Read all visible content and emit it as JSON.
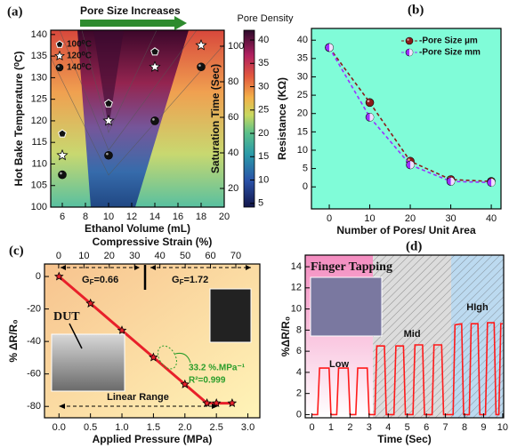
{
  "chart_data": [
    {
      "type": "contour",
      "panel_label": "(a)",
      "annotation": "Pore Size Increases",
      "xlabel": "Ethanol Volume (mL)",
      "ylabel": "Hot Bake Temperature (⁰C)",
      "y2label": "Saturation Time (Sec)",
      "colorbar_label": "Pore Density",
      "xlim": [
        5,
        20
      ],
      "xticks": [
        6,
        8,
        10,
        12,
        14,
        16,
        18,
        20
      ],
      "ylim": [
        100,
        141
      ],
      "yticks": [
        100,
        105,
        110,
        115,
        120,
        125,
        130,
        135,
        140
      ],
      "y2lim": [
        9.5,
        109
      ],
      "y2ticks": [
        20,
        40,
        60,
        80,
        100
      ],
      "clim": [
        4.2,
        42.1
      ],
      "cticks": [
        5,
        10,
        15,
        20,
        25,
        30,
        35,
        40
      ],
      "series": [
        {
          "name": "100⁰C",
          "marker": "pentagon",
          "color": "#111111",
          "x": [
            6,
            10,
            14
          ],
          "values": [
            117,
            124,
            136
          ]
        },
        {
          "name": "120⁰C",
          "marker": "star",
          "color": "#ffffff",
          "x": [
            6,
            10,
            14,
            18
          ],
          "values": [
            112,
            120,
            132.5,
            137.5
          ]
        },
        {
          "name": "140⁰C",
          "marker": "ball",
          "color": "#111111",
          "x": [
            6,
            10,
            14,
            18
          ],
          "values": [
            107.5,
            112,
            120,
            132.5
          ]
        }
      ]
    },
    {
      "type": "line",
      "panel_label": "(b)",
      "xlabel": "Number of Pores/ Unit Area",
      "ylabel": "Resistance (KΩ)",
      "x": [
        0,
        10,
        20,
        30,
        40
      ],
      "xlim": [
        -4.4,
        42.4
      ],
      "xticks": [
        0,
        10,
        20,
        30,
        40
      ],
      "ylim": [
        -6,
        43.2
      ],
      "yticks": [
        0,
        5,
        10,
        15,
        20,
        25,
        30,
        35,
        40
      ],
      "background": "#80fcd8",
      "legend": "upper right",
      "series": [
        {
          "name": "-Pore Size µm",
          "color": "#8b1a1a",
          "marker": "ball",
          "line_style": "dashed",
          "values": [
            38,
            23,
            7,
            2,
            1.5
          ]
        },
        {
          "name": "-Pore Size mm",
          "color": "#9b30ff",
          "marker": "half-ball",
          "line_style": "dashed",
          "values": [
            38,
            19,
            6,
            1.5,
            1.2
          ]
        }
      ]
    },
    {
      "type": "line",
      "panel_label": "(c)",
      "xlabel": "Applied Pressure (MPa)",
      "ylabel": "% ΔR/R₀",
      "x2label": "Compressive Strain (%)",
      "x": [
        0,
        0.5,
        1,
        1.5,
        2,
        2.35,
        2.5,
        2.75
      ],
      "xlim": [
        -0.23,
        3.19
      ],
      "xticks": [
        {
          "value": 0,
          "label": "0.0"
        },
        0.5,
        {
          "value": 1,
          "label": "1.0"
        },
        1.5,
        {
          "value": 2,
          "label": "2.0"
        },
        2.5,
        {
          "value": 3,
          "label": "3.0"
        }
      ],
      "x2lim": [
        -5.6,
        79.5
      ],
      "x2ticks": [
        0,
        10,
        20,
        30,
        40,
        50,
        60,
        70
      ],
      "ylim": [
        -87,
        7.7
      ],
      "yticks": [
        -80,
        -60,
        -40,
        -20,
        0
      ],
      "series": [
        {
          "color": "#e8202a",
          "marker": "star",
          "line_style": "solid",
          "values": [
            0,
            -16.6,
            -33.2,
            -49.8,
            -66.4,
            -78,
            -78,
            -78
          ]
        }
      ],
      "gauge_factors": [
        {
          "symbol": "G",
          "subscript": "F",
          "text": "=0.66"
        },
        {
          "symbol": "G",
          "subscript": "F",
          "text": "=1.72"
        }
      ],
      "device_label": "DUT",
      "slope_label": "33.2 %.MPa⁻¹",
      "fit_label": "R²=0.999",
      "range_label": "Linear Range"
    },
    {
      "type": "line",
      "panel_label": "(d)",
      "title": "Finger Tapping",
      "xlabel": "Time (Sec)",
      "ylabel": "%ΔR/R₀",
      "x": [
        0,
        0.3,
        0.4,
        0.9,
        1.0,
        1.3,
        1.4,
        1.9,
        2.0,
        2.3,
        2.4,
        2.9,
        3.0,
        3.3,
        3.4,
        3.8,
        3.9,
        4.3,
        4.4,
        4.8,
        4.9,
        5.3,
        5.4,
        5.8,
        5.9,
        6.3,
        6.4,
        6.8,
        6.9,
        7.4,
        7.5,
        7.85,
        7.95,
        8.25,
        8.35,
        8.7,
        8.8,
        9.1,
        9.2,
        9.55,
        9.65,
        9.8,
        9.9,
        10
      ],
      "xlim": [
        -0.35,
        10.05
      ],
      "xticks": [
        0,
        1,
        2,
        3,
        4,
        5,
        6,
        7,
        8,
        9,
        10
      ],
      "ylim": [
        -0.3,
        15.1
      ],
      "yticks": [
        0,
        2,
        4,
        6,
        8,
        10,
        12,
        14
      ],
      "regions": [
        {
          "label": "Low",
          "x": [
            -0.35,
            3.2
          ],
          "color": "#f9c8dc"
        },
        {
          "label": "Mid",
          "x": [
            3.2,
            7.3
          ],
          "color": "#dcdcdc"
        },
        {
          "label": "HIgh",
          "x": [
            7.3,
            10.05
          ],
          "color": "#bcdaf0"
        }
      ],
      "series": [
        {
          "color": "#ff1a1a",
          "line_style": "solid",
          "values": [
            0,
            0,
            4.4,
            4.4,
            0,
            0,
            4.4,
            4.4,
            0,
            0,
            4.4,
            4.4,
            0,
            0,
            6.5,
            6.5,
            0,
            0,
            6.5,
            6.5,
            0,
            0,
            6.6,
            6.6,
            0,
            0,
            6.6,
            6.6,
            0,
            0,
            8.5,
            8.6,
            0,
            0,
            8.6,
            8.6,
            0,
            0,
            8.7,
            8.7,
            0,
            0,
            8.6,
            8.6
          ]
        }
      ]
    }
  ]
}
